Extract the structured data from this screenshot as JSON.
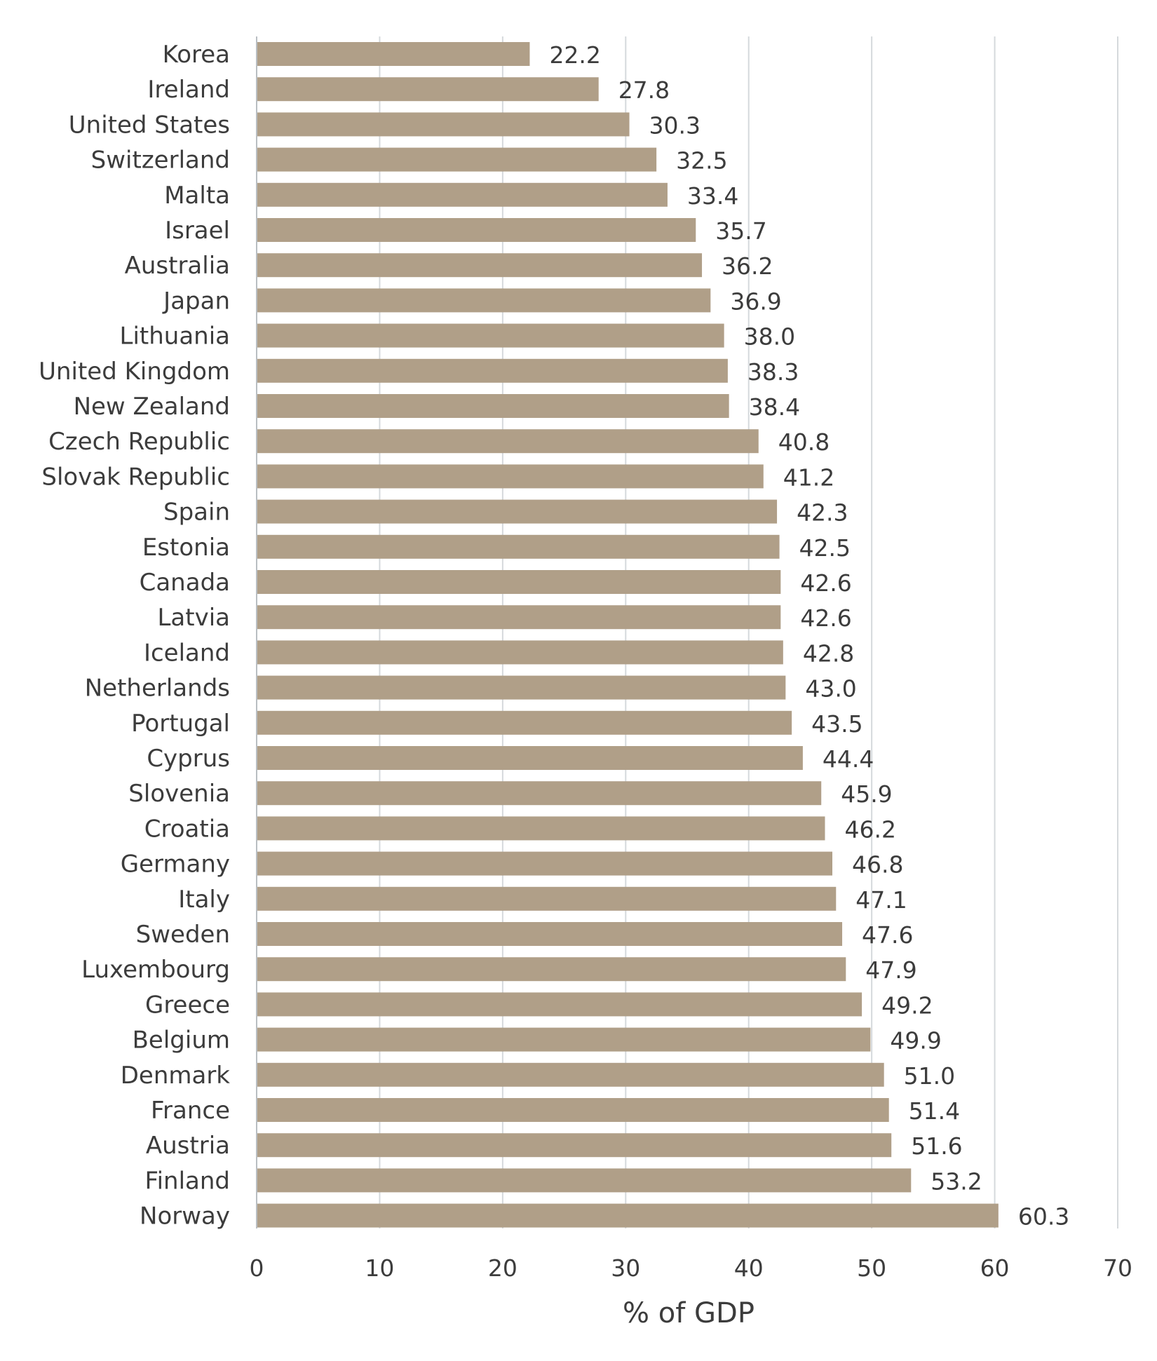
{
  "chart_data": {
    "type": "bar",
    "orientation": "horizontal",
    "categories": [
      "Korea",
      "Ireland",
      "United States",
      "Switzerland",
      "Malta",
      "Israel",
      "Australia",
      "Japan",
      "Lithuania",
      "United Kingdom",
      "New Zealand",
      "Czech Republic",
      "Slovak Republic",
      "Spain",
      "Estonia",
      "Canada",
      "Latvia",
      "Iceland",
      "Netherlands",
      "Portugal",
      "Cyprus",
      "Slovenia",
      "Croatia",
      "Germany",
      "Italy",
      "Sweden",
      "Luxembourg",
      "Greece",
      "Belgium",
      "Denmark",
      "France",
      "Austria",
      "Finland",
      "Norway"
    ],
    "values": [
      22.2,
      27.8,
      30.3,
      32.5,
      33.4,
      35.7,
      36.2,
      36.9,
      38.0,
      38.3,
      38.4,
      40.8,
      41.2,
      42.3,
      42.5,
      42.6,
      42.6,
      42.8,
      43.0,
      43.5,
      44.4,
      45.9,
      46.2,
      46.8,
      47.1,
      47.6,
      47.9,
      49.2,
      49.9,
      51.0,
      51.4,
      51.6,
      53.2,
      60.3
    ],
    "value_labels": [
      "22.2",
      "27.8",
      "30.3",
      "32.5",
      "33.4",
      "35.7",
      "36.2",
      "36.9",
      "38.0",
      "38.3",
      "38.4",
      "40.8",
      "41.2",
      "42.3",
      "42.5",
      "42.6",
      "42.6",
      "42.8",
      "43.0",
      "43.5",
      "44.4",
      "45.9",
      "46.2",
      "46.8",
      "47.1",
      "47.6",
      "47.9",
      "49.2",
      "49.9",
      "51.0",
      "51.4",
      "51.6",
      "53.2",
      "60.3"
    ],
    "xlabel": "% of GDP",
    "ylabel": "",
    "title": "",
    "xlim": [
      0,
      70
    ],
    "xticks": [
      "0",
      "10",
      "20",
      "30",
      "40",
      "50",
      "60",
      "70"
    ],
    "grid": "vertical",
    "bar_color": "#b09f88",
    "grid_color": "#d5d9dc",
    "text_color": "#3c3c3c"
  }
}
